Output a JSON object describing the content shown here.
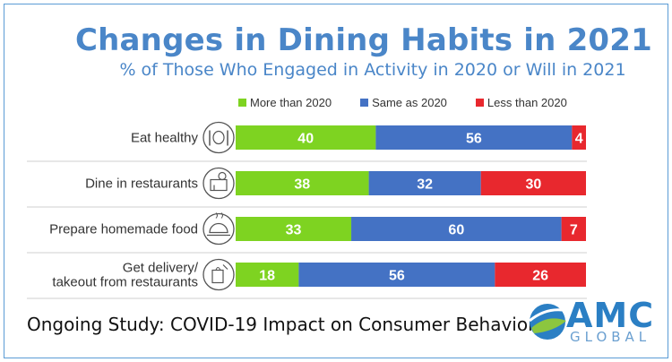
{
  "chart_data": {
    "type": "bar",
    "orientation": "horizontal",
    "stacked": true,
    "title": "Changes in Dining Habits in 2021",
    "subtitle": "% of Those Who Engaged in Activity in 2020 or Will in 2021",
    "categories": [
      [
        "Eat healthy"
      ],
      [
        "Dine in restaurants"
      ],
      [
        "Prepare homemade food"
      ],
      [
        "Get delivery/",
        "takeout from restaurants"
      ]
    ],
    "series": [
      {
        "name": "More than 2020",
        "color": "#7ed321",
        "values": [
          40,
          38,
          33,
          18
        ]
      },
      {
        "name": "Same as 2020",
        "color": "#4472c4",
        "values": [
          56,
          32,
          60,
          56
        ]
      },
      {
        "name": "Less than 2020",
        "color": "#e8282e",
        "values": [
          4,
          30,
          7,
          26
        ]
      }
    ],
    "xlim": [
      0,
      100
    ],
    "legend_position": "top",
    "grid": false
  },
  "icons": [
    "plate-cutlery-icon",
    "restaurant-building-icon",
    "cloche-icon",
    "takeout-bag-icon"
  ],
  "footer": {
    "text": "Ongoing Study: COVID-19 Impact on Consumer Behavior"
  },
  "logo": {
    "name": "AMC",
    "sub": "GLOBAL"
  }
}
